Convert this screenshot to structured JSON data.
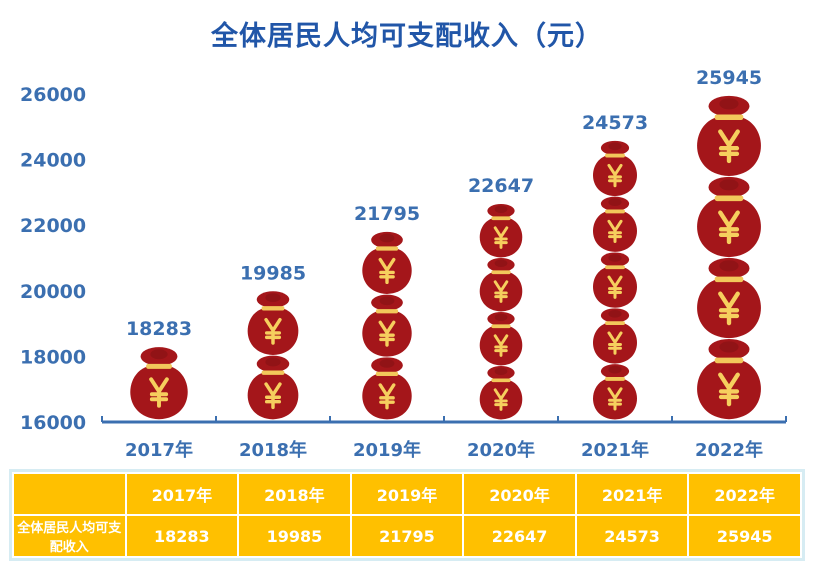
{
  "title": "全体居民人均可支配收入（元）",
  "colors": {
    "title": "#2156a8",
    "axis_text": "#3b6fb0",
    "axis_line": "#3b6fb0",
    "bag": "#a4161a",
    "bag_dark": "#7a0f12",
    "bag_band": "#f2c85b",
    "yen": "#f6cf5e",
    "table_bg": "#ffc000",
    "table_text": "#ffffff"
  },
  "chart_data": {
    "type": "bar",
    "title": "全体居民人均可支配收入（元）",
    "categories": [
      "2017年",
      "2018年",
      "2019年",
      "2020年",
      "2021年",
      "2022年"
    ],
    "values": [
      18283,
      19985,
      21795,
      22647,
      24573,
      25945
    ],
    "bag_counts": [
      1,
      2,
      3,
      4,
      5,
      4
    ],
    "bag_icon": "yen-money-bag-icon",
    "yticks": [
      16000,
      18000,
      20000,
      22000,
      24000,
      26000
    ],
    "ylim": [
      16000,
      26000
    ],
    "grid": false,
    "legend": "none"
  },
  "table": {
    "header": [
      "",
      "2017年",
      "2018年",
      "2019年",
      "2020年",
      "2021年",
      "2022年"
    ],
    "row_label": "全体居民人均可支配收入",
    "values": [
      "18283",
      "19985",
      "21795",
      "22647",
      "24573",
      "25945"
    ]
  }
}
